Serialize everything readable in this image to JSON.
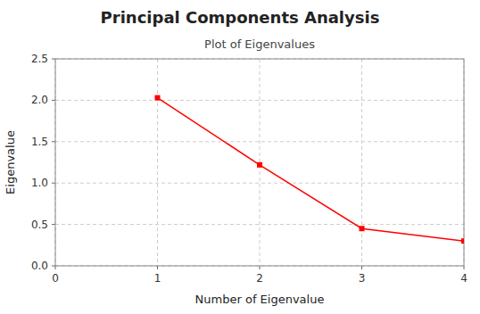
{
  "chart_data": {
    "type": "line",
    "title": "Principal Components Analysis",
    "subtitle": "Plot of Eigenvalues",
    "x_label": "Number of Eigenvalue",
    "y_label": "Eigenvalue",
    "x": [
      1,
      2,
      3,
      4
    ],
    "values": [
      2.03,
      1.22,
      0.45,
      0.3
    ],
    "color": "red",
    "marker": "square",
    "xlim": [
      0,
      4
    ],
    "ylim": [
      0,
      2.5
    ],
    "xticks": [
      0,
      1,
      2,
      3,
      4
    ],
    "yticks": [
      {
        "value": 0,
        "label": "0.0"
      },
      0.5,
      {
        "value": 1.0,
        "label": "1.0"
      },
      1.5,
      {
        "value": 2.0,
        "label": "2.0"
      },
      2.5
    ],
    "grid": true
  }
}
